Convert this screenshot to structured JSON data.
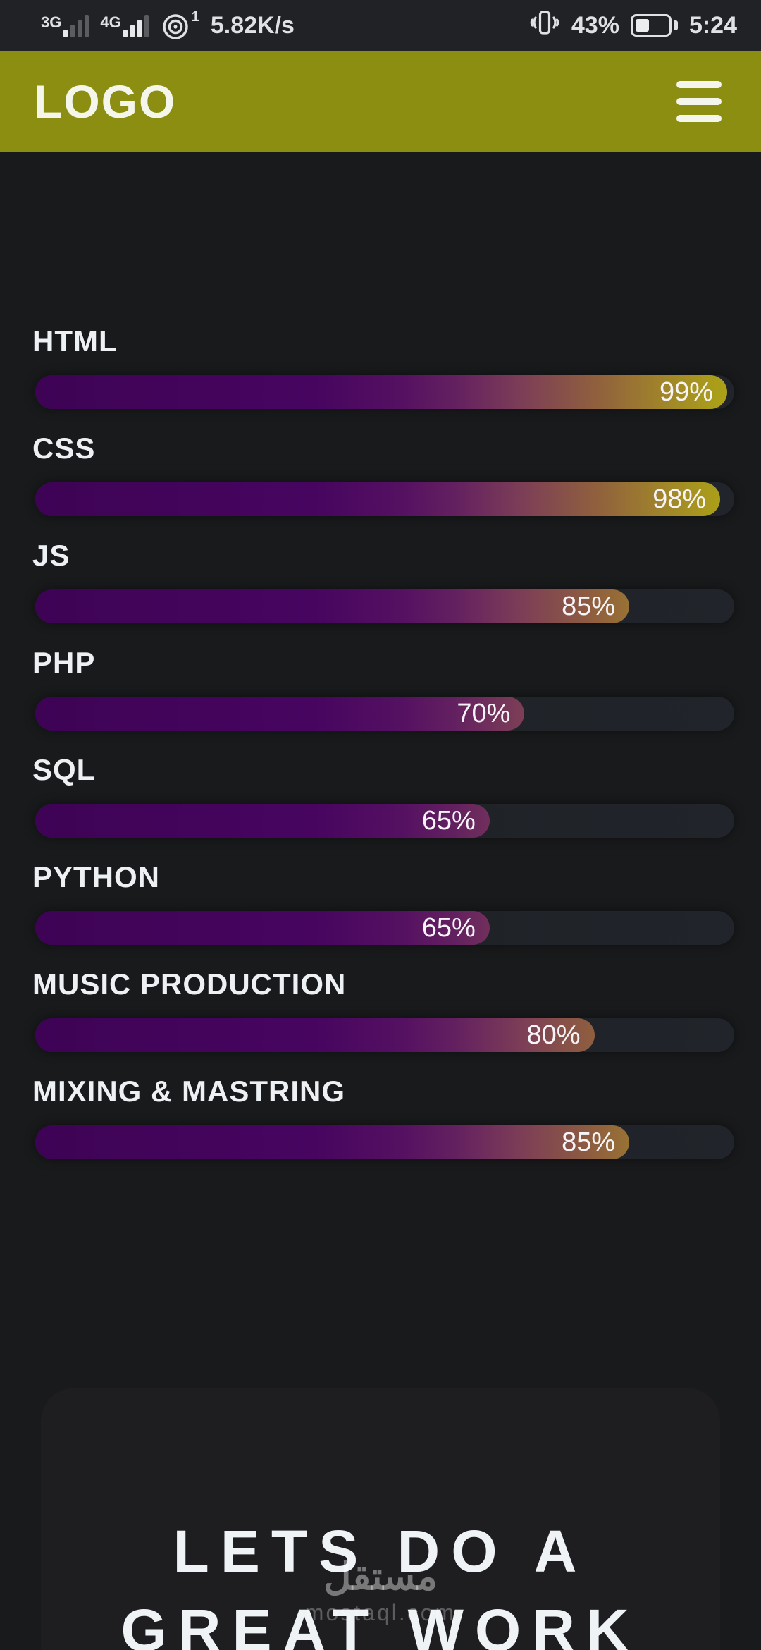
{
  "status_bar": {
    "sim1_network": "3G",
    "sim2_network": "4G",
    "hotspot_badge": "1",
    "net_speed": "5.82K/s",
    "battery_percent": "43%",
    "battery_level": 43,
    "time": "5:24"
  },
  "header": {
    "logo": "LOGO"
  },
  "skills": {
    "items": [
      {
        "label": "HTML",
        "percent": 99,
        "percent_label": "99%"
      },
      {
        "label": "CSS",
        "percent": 98,
        "percent_label": "98%"
      },
      {
        "label": "JS",
        "percent": 85,
        "percent_label": "85%"
      },
      {
        "label": "PHP",
        "percent": 70,
        "percent_label": "70%"
      },
      {
        "label": "SQL",
        "percent": 65,
        "percent_label": "65%"
      },
      {
        "label": "PYTHON",
        "percent": 65,
        "percent_label": "65%"
      },
      {
        "label": "MUSIC PRODUCTION",
        "percent": 80,
        "percent_label": "80%"
      },
      {
        "label": "MIXING & MASTRING",
        "percent": 85,
        "percent_label": "85%"
      }
    ]
  },
  "cta": {
    "line1": "LETS DO A",
    "line2": "GREAT WORK"
  },
  "watermark": {
    "arabic": "مستقل",
    "domain": "mostaql.com"
  },
  "colors": {
    "accent": "#8b8e11",
    "page_bg": "#191a1c",
    "statusbar_bg": "#212225",
    "card_bg": "#1e1e21",
    "track_bg": "#1e2126",
    "text": "#eef1f4",
    "bar_gradient_start": "#3e0355",
    "bar_gradient_mid": "#7d3f56",
    "bar_gradient_end": "#ada614"
  }
}
